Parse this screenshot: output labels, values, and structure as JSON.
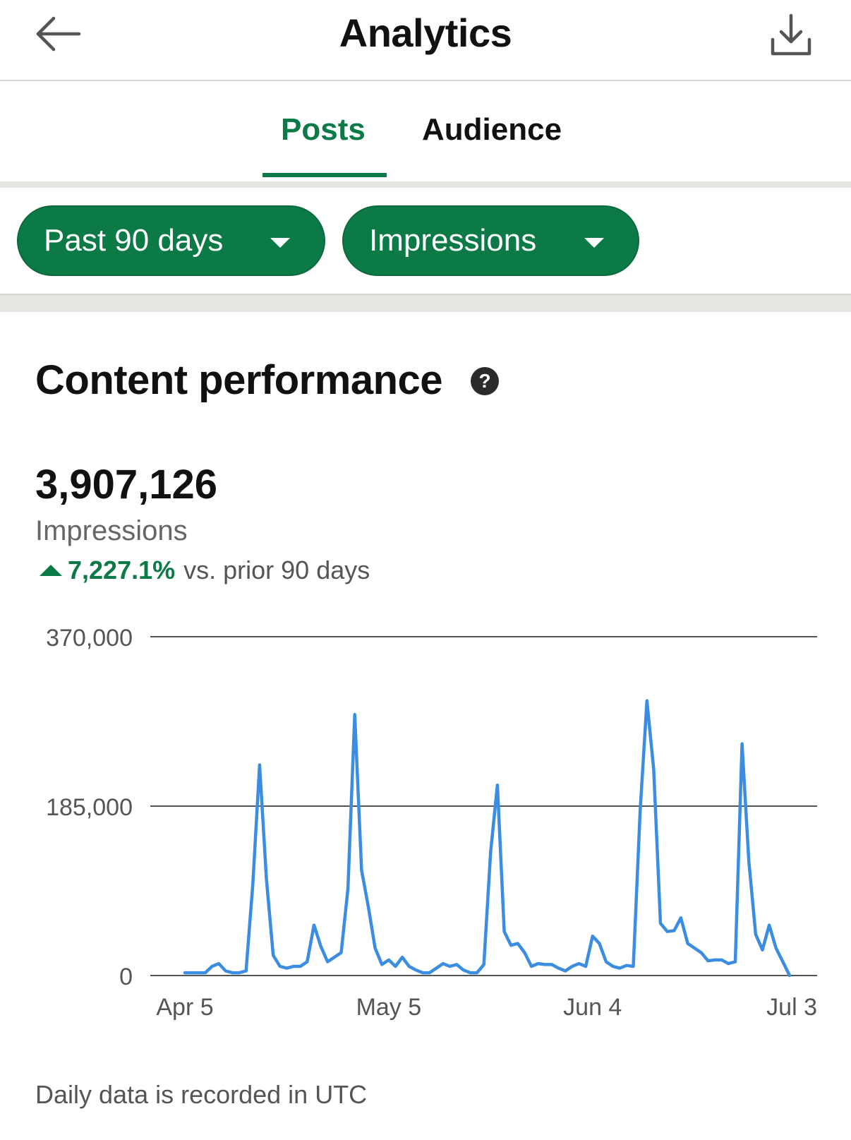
{
  "header": {
    "title": "Analytics",
    "back_icon": "arrow-left-icon",
    "download_icon": "download-icon"
  },
  "tabs": [
    {
      "label": "Posts",
      "active": true
    },
    {
      "label": "Audience",
      "active": false
    }
  ],
  "filters": {
    "range_label": "Past 90 days",
    "metric_label": "Impressions"
  },
  "content": {
    "title": "Content performance",
    "help_icon": "question-circle-icon",
    "metric_value": "3,907,126",
    "metric_label": "Impressions",
    "trend_pct": "7,227.1%",
    "trend_text": "vs. prior 90 days",
    "footnote": "Daily data is recorded in UTC"
  },
  "colors": {
    "accent": "#0b7a46",
    "line": "#3a8de0",
    "grid": "#555555"
  },
  "chart_data": {
    "type": "line",
    "ylim": [
      0,
      370000
    ],
    "yticks": [
      "370,000",
      "185,000",
      "0"
    ],
    "ytick_values": [
      370000,
      185000,
      0
    ],
    "xticks": [
      "Apr 5",
      "May 5",
      "Jun 4",
      "Jul 3"
    ],
    "xtick_values": [
      "2024-04-05",
      "2024-05-05",
      "2024-06-04",
      "2024-07-03"
    ],
    "grid": true,
    "x": [
      "2024-04-05",
      "2024-04-06",
      "2024-04-07",
      "2024-04-08",
      "2024-04-09",
      "2024-04-10",
      "2024-04-11",
      "2024-04-12",
      "2024-04-13",
      "2024-04-14",
      "2024-04-15",
      "2024-04-16",
      "2024-04-17",
      "2024-04-18",
      "2024-04-19",
      "2024-04-20",
      "2024-04-21",
      "2024-04-22",
      "2024-04-23",
      "2024-04-24",
      "2024-04-25",
      "2024-04-26",
      "2024-04-27",
      "2024-04-28",
      "2024-04-29",
      "2024-04-30",
      "2024-05-01",
      "2024-05-02",
      "2024-05-03",
      "2024-05-04",
      "2024-05-05",
      "2024-05-06",
      "2024-05-07",
      "2024-05-08",
      "2024-05-09",
      "2024-05-10",
      "2024-05-11",
      "2024-05-12",
      "2024-05-13",
      "2024-05-14",
      "2024-05-15",
      "2024-05-16",
      "2024-05-17",
      "2024-05-18",
      "2024-05-19",
      "2024-05-20",
      "2024-05-21",
      "2024-05-22",
      "2024-05-23",
      "2024-05-24",
      "2024-05-25",
      "2024-05-26",
      "2024-05-27",
      "2024-05-28",
      "2024-05-29",
      "2024-05-30",
      "2024-05-31",
      "2024-06-01",
      "2024-06-02",
      "2024-06-03",
      "2024-06-04",
      "2024-06-05",
      "2024-06-06",
      "2024-06-07",
      "2024-06-08",
      "2024-06-09",
      "2024-06-10",
      "2024-06-11",
      "2024-06-12",
      "2024-06-13",
      "2024-06-14",
      "2024-06-15",
      "2024-06-16",
      "2024-06-17",
      "2024-06-18",
      "2024-06-19",
      "2024-06-20",
      "2024-06-21",
      "2024-06-22",
      "2024-06-23",
      "2024-06-24",
      "2024-06-25",
      "2024-06-26",
      "2024-06-27",
      "2024-06-28",
      "2024-06-29",
      "2024-06-30",
      "2024-07-01",
      "2024-07-02",
      "2024-07-03"
    ],
    "series": [
      {
        "values": [
          3000,
          3000,
          3000,
          3000,
          10000,
          13000,
          5000,
          3000,
          3000,
          5000,
          100000,
          230000,
          105000,
          22000,
          10000,
          8000,
          10000,
          10000,
          15000,
          55000,
          32000,
          15000,
          20000,
          25000,
          95000,
          285000,
          115000,
          75000,
          30000,
          12000,
          17000,
          10000,
          20000,
          10000,
          6000,
          3000,
          3000,
          8000,
          13000,
          10000,
          12000,
          6000,
          3000,
          3000,
          12000,
          135000,
          208000,
          48000,
          33000,
          35000,
          25000,
          10000,
          13000,
          12000,
          12000,
          8000,
          5000,
          10000,
          13000,
          10000,
          43000,
          35000,
          15000,
          10000,
          8000,
          11000,
          10000,
          180000,
          300000,
          225000,
          57000,
          48000,
          49000,
          63000,
          35000,
          30000,
          25000,
          16000,
          17000,
          17000,
          13000,
          15000,
          253000,
          125000,
          45000,
          28000,
          55000,
          30000,
          15000,
          0
        ]
      }
    ]
  }
}
